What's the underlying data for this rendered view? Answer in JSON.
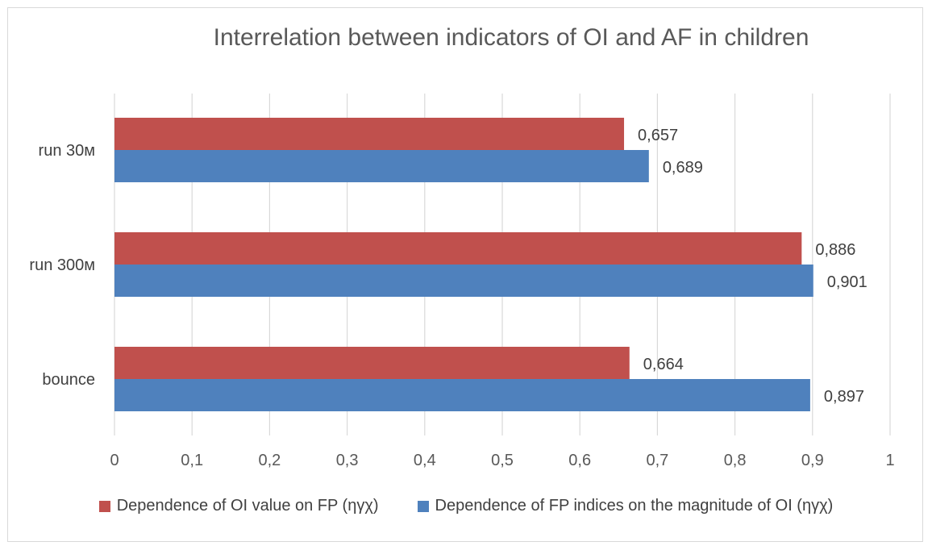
{
  "chart_data": {
    "type": "bar",
    "orientation": "horizontal",
    "title": "Interrelation between indicators of OI and AF in children",
    "categories": [
      "run 30м",
      "run 300м",
      "bounce"
    ],
    "series": [
      {
        "name": "Dependence of OI value on FP (ηγχ)",
        "color": "#c0504d",
        "values": [
          0.657,
          0.886,
          0.664
        ],
        "labels": [
          "0,657",
          "0,886",
          "0,664"
        ]
      },
      {
        "name": "Dependence of FP indices on the magnitude of OI (ηγχ)",
        "color": "#4f81bd",
        "values": [
          0.689,
          0.901,
          0.897
        ],
        "labels": [
          "0,689",
          "0,901",
          "0,897"
        ]
      }
    ],
    "xlim": [
      0,
      1
    ],
    "xticks": [
      0,
      0.1,
      0.2,
      0.3,
      0.4,
      0.5,
      0.6,
      0.7,
      0.8,
      0.9,
      1
    ],
    "xtick_labels": [
      "0",
      "0,1",
      "0,2",
      "0,3",
      "0,4",
      "0,5",
      "0,6",
      "0,7",
      "0,8",
      "0,9",
      "1"
    ],
    "grid": "vertical",
    "legend_position": "bottom"
  }
}
